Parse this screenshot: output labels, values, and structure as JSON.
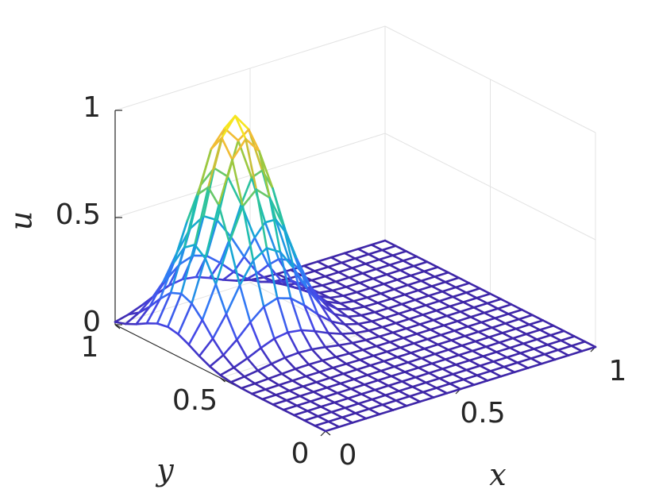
{
  "chart_data": {
    "type": "surface",
    "title": "",
    "xlabel": "x",
    "ylabel": "y",
    "zlabel": "u",
    "xlim": [
      0,
      1
    ],
    "ylim": [
      0,
      1
    ],
    "zlim": [
      0,
      1
    ],
    "x_ticks": [
      "0",
      "0.5",
      "1"
    ],
    "y_ticks": [
      "0",
      "0.5",
      "1"
    ],
    "z_ticks": [
      "0",
      "0.5",
      "1"
    ],
    "grid": true,
    "colormap": "parula",
    "mesh_resolution": 21,
    "surface": {
      "function": "gaussian",
      "peak_value": 1,
      "peak_x": 0.25,
      "peak_y": 0.75,
      "spread_sigma": 0.12
    }
  }
}
